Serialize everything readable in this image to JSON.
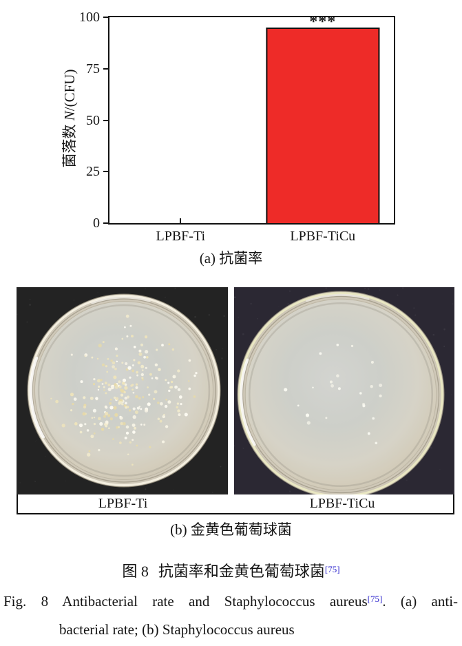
{
  "chart_data": {
    "type": "bar",
    "title": "",
    "categories": [
      "LPBF-Ti",
      "LPBF-TiCu"
    ],
    "values": [
      0,
      95
    ],
    "ylabel": "菌落数 N/(CFU)",
    "ylabel_parts": {
      "zh": "菌落数 ",
      "symbol": "N",
      "unit": "/(CFU)"
    },
    "xlabel": "",
    "ylim": [
      0,
      100
    ],
    "yticks": [
      "0",
      "25",
      "50",
      "75",
      "100"
    ],
    "grid": false,
    "legend": null,
    "bar_color": "#ee2b28",
    "bar_border_color": "#111111",
    "bar_width_pct": 40,
    "significance": {
      "text": "***",
      "category": "LPBF-TiCu"
    }
  },
  "panel_a": {
    "caption": "(a) 抗菌率"
  },
  "panel_b": {
    "caption": "(b) 金黄色葡萄球菌",
    "dishes": [
      {
        "label": "LPBF-Ti",
        "colony_count": 238,
        "colony_palette": [
          "#eee4bc",
          "#f2ebcd",
          "#e7daa9",
          "#f8f4e6",
          "#fdfbf2"
        ],
        "background": "#232323",
        "rim_highlight": "#f3eedf",
        "seed": 11,
        "clusters": 15,
        "spread": 0.78
      },
      {
        "label": "LPBF-TiCu",
        "colony_count": 23,
        "colony_palette": [
          "#fafaf2",
          "#f1f0e6"
        ],
        "background": "#2b2833",
        "rim_highlight": "#e9e7c2",
        "seed": 5,
        "clusters": 7,
        "spread": 0.62
      }
    ]
  },
  "captions": {
    "zh_fig": "图 8",
    "zh_title": "抗菌率和金黄色葡萄球菌",
    "zh_ref": "[75]",
    "en_fig": "Fig. 8",
    "en_part1": "Antibacterial rate and Staphylococcus aureus",
    "en_ref": "[75]",
    "en_part2": ". (a) anti-",
    "en_line2": "bacterial rate; (b) Staphylococcus aureus",
    "ref_color": "#2a22cc"
  }
}
